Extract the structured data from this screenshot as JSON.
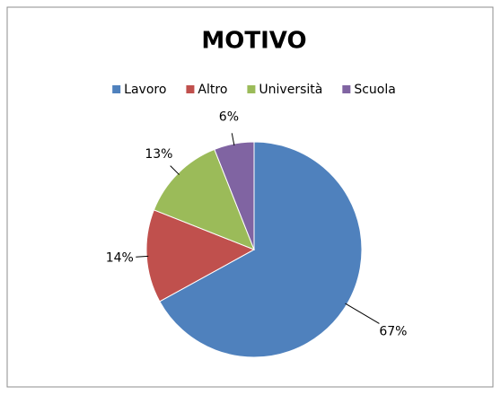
{
  "chart_data": {
    "type": "pie",
    "title": "MOTIVO",
    "categories": [
      "Lavoro",
      "Altro",
      "Università",
      "Scuola"
    ],
    "values": [
      67,
      14,
      13,
      6
    ],
    "value_labels": [
      "67%",
      "14%",
      "13%",
      "6%"
    ],
    "colors": [
      "#4f81bd",
      "#c0504d",
      "#9bbb59",
      "#8064a2"
    ],
    "legend": "top"
  }
}
